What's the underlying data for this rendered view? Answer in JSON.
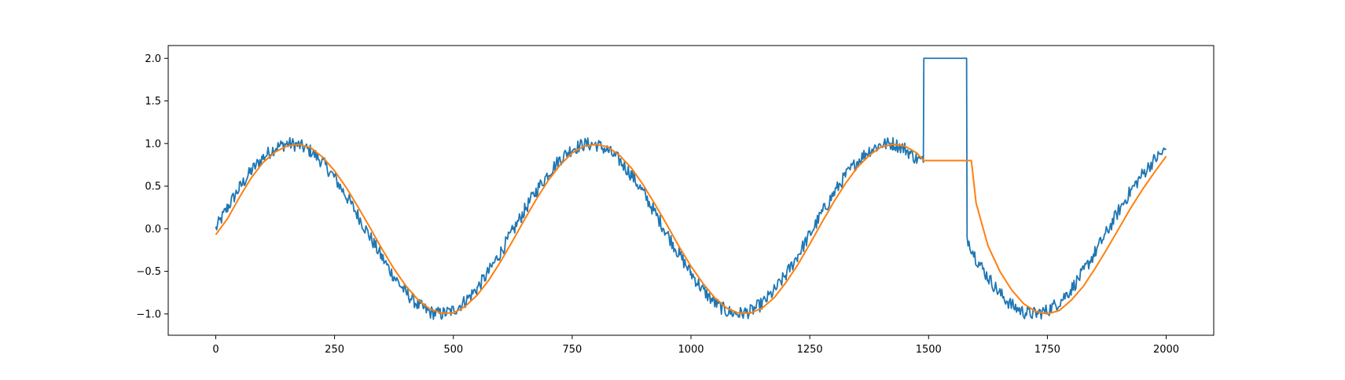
{
  "chart_data": {
    "type": "line",
    "title": "",
    "xlabel": "",
    "ylabel": "",
    "xlim": [
      -100,
      2100
    ],
    "ylim": [
      -1.25,
      2.15
    ],
    "grid": false,
    "legend": "none",
    "x_ticks": [
      0,
      250,
      500,
      750,
      1000,
      1250,
      1500,
      1750,
      2000
    ],
    "x_tick_labels": [
      "0",
      "250",
      "500",
      "750",
      "1000",
      "1250",
      "1500",
      "1750",
      "2000"
    ],
    "y_ticks": [
      -1.0,
      -0.5,
      0.0,
      0.5,
      1.0,
      1.5,
      2.0
    ],
    "y_tick_labels": [
      "−1.0",
      "−0.5",
      "0.0",
      "0.5",
      "1.0",
      "1.5",
      "2.0"
    ],
    "series": [
      {
        "color": "#1f77b4",
        "description_points": "noisy sine wave, period ~628 samples, amplitude ~1, noise ~±0.08; plateau at 2.0 from x=1490 to x=1580",
        "x": [
          0,
          25,
          50,
          75,
          100,
          125,
          150,
          175,
          200,
          225,
          250,
          275,
          300,
          325,
          350,
          375,
          400,
          425,
          450,
          475,
          500,
          525,
          550,
          575,
          600,
          625,
          650,
          675,
          700,
          725,
          750,
          775,
          800,
          825,
          850,
          875,
          900,
          925,
          950,
          975,
          1000,
          1025,
          1050,
          1075,
          1100,
          1125,
          1150,
          1175,
          1200,
          1225,
          1250,
          1275,
          1300,
          1325,
          1350,
          1375,
          1400,
          1425,
          1450,
          1475,
          1489,
          1490,
          1580,
          1581,
          1600,
          1625,
          1650,
          1675,
          1700,
          1725,
          1750,
          1775,
          1800,
          1825,
          1850,
          1875,
          1900,
          1925,
          1950,
          1975,
          2000
        ],
        "y": [
          0.0,
          0.25,
          0.48,
          0.68,
          0.84,
          0.95,
          1.0,
          0.98,
          0.91,
          0.78,
          0.6,
          0.38,
          0.15,
          -0.1,
          -0.34,
          -0.56,
          -0.75,
          -0.89,
          -0.98,
          -1.0,
          -0.96,
          -0.85,
          -0.7,
          -0.5,
          -0.27,
          -0.03,
          0.22,
          0.45,
          0.65,
          0.82,
          0.94,
          0.99,
          0.99,
          0.92,
          0.8,
          0.63,
          0.42,
          0.18,
          -0.06,
          -0.3,
          -0.52,
          -0.72,
          -0.87,
          -0.97,
          -1.0,
          -0.97,
          -0.88,
          -0.73,
          -0.54,
          -0.31,
          -0.07,
          0.18,
          0.41,
          0.62,
          0.79,
          0.92,
          0.99,
          1.0,
          0.94,
          0.82,
          0.78,
          2.0,
          2.0,
          -0.1,
          -0.35,
          -0.57,
          -0.76,
          -0.9,
          -0.98,
          -1.0,
          -0.96,
          -0.86,
          -0.71,
          -0.51,
          -0.28,
          -0.04,
          0.21,
          0.44,
          0.64,
          0.81,
          0.93
        ]
      },
      {
        "color": "#ff7f0e",
        "description_points": "smoothed / lagged sine; holds at ~0.8 from x=1490 to x=1590 then decays",
        "x": [
          0,
          25,
          50,
          75,
          100,
          125,
          150,
          175,
          200,
          225,
          250,
          275,
          300,
          325,
          350,
          375,
          400,
          425,
          450,
          475,
          500,
          525,
          550,
          575,
          600,
          625,
          650,
          675,
          700,
          725,
          750,
          775,
          800,
          825,
          850,
          875,
          900,
          925,
          950,
          975,
          1000,
          1025,
          1050,
          1075,
          1100,
          1125,
          1150,
          1175,
          1200,
          1225,
          1250,
          1275,
          1300,
          1325,
          1350,
          1375,
          1400,
          1425,
          1450,
          1475,
          1490,
          1590,
          1600,
          1625,
          1650,
          1675,
          1700,
          1725,
          1750,
          1775,
          1800,
          1825,
          1850,
          1875,
          1900,
          1925,
          1950,
          1975,
          2000
        ],
        "y": [
          -0.07,
          0.12,
          0.37,
          0.6,
          0.78,
          0.9,
          0.97,
          0.99,
          0.95,
          0.84,
          0.68,
          0.48,
          0.25,
          0.01,
          -0.24,
          -0.47,
          -0.67,
          -0.83,
          -0.94,
          -0.99,
          -0.99,
          -0.91,
          -0.78,
          -0.6,
          -0.38,
          -0.14,
          0.11,
          0.35,
          0.57,
          0.75,
          0.89,
          0.97,
          0.99,
          0.96,
          0.86,
          0.71,
          0.51,
          0.28,
          0.04,
          -0.21,
          -0.44,
          -0.64,
          -0.81,
          -0.93,
          -0.99,
          -0.99,
          -0.93,
          -0.81,
          -0.63,
          -0.42,
          -0.18,
          0.07,
          0.31,
          0.53,
          0.72,
          0.86,
          0.96,
          0.99,
          0.97,
          0.89,
          0.8,
          0.8,
          0.3,
          -0.2,
          -0.5,
          -0.72,
          -0.88,
          -0.97,
          -1.0,
          -0.96,
          -0.84,
          -0.68,
          -0.47,
          -0.24,
          0.0,
          0.24,
          0.46,
          0.66,
          0.85
        ]
      }
    ]
  }
}
